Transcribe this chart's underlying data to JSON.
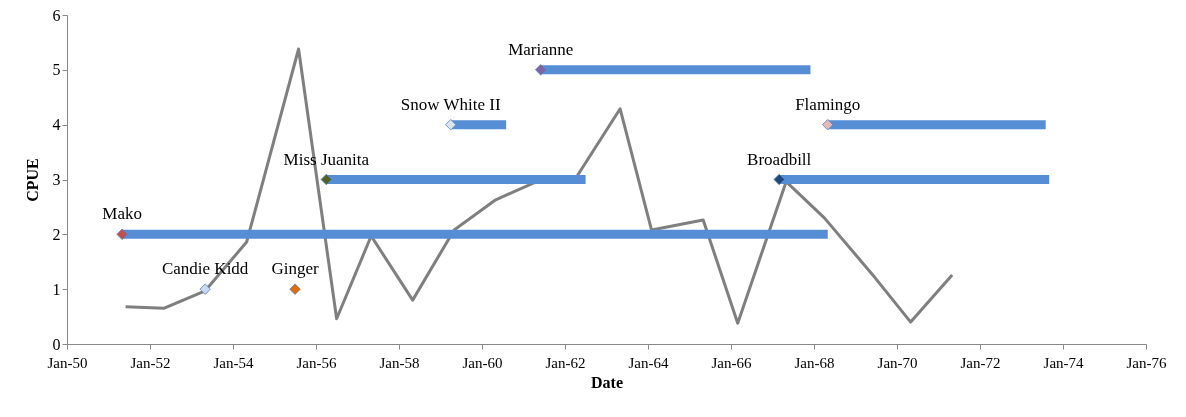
{
  "chart_data": {
    "type": "line",
    "xlabel": "Date",
    "ylabel": "CPUE",
    "xlim": [
      "1950-01",
      "1976-01"
    ],
    "ylim": [
      0,
      6
    ],
    "yticks": [
      0,
      1,
      2,
      3,
      4,
      5,
      6
    ],
    "xticks": [
      {
        "value": "1950-01",
        "label": "Jan-50"
      },
      {
        "value": "1952-01",
        "label": "Jan-52"
      },
      {
        "value": "1954-01",
        "label": "Jan-54"
      },
      {
        "value": "1956-01",
        "label": "Jan-56"
      },
      {
        "value": "1958-01",
        "label": "Jan-58"
      },
      {
        "value": "1960-01",
        "label": "Jan-60"
      },
      {
        "value": "1962-01",
        "label": "Jan-62"
      },
      {
        "value": "1964-01",
        "label": "Jan-64"
      },
      {
        "value": "1966-01",
        "label": "Jan-66"
      },
      {
        "value": "1968-01",
        "label": "Jan-68"
      },
      {
        "value": "1970-01",
        "label": "Jan-70"
      },
      {
        "value": "1972-01",
        "label": "Jan-72"
      },
      {
        "value": "1974-01",
        "label": "Jan-74"
      },
      {
        "value": "1976-01",
        "label": "Jan-76"
      }
    ],
    "grid": false,
    "line_style": "solid",
    "series": [
      {
        "color": "#7f7f7f",
        "x": [
          "1951-06",
          "1952-05",
          "1953-05",
          "1954-05",
          "1955-08",
          "1956-07",
          "1957-05",
          "1958-05",
          "1959-05",
          "1960-05",
          "1961-04",
          "1962-04",
          "1963-05",
          "1964-02",
          "1965-05",
          "1966-03",
          "1967-05",
          "1968-04",
          "1969-06",
          "1970-05",
          "1971-05"
        ],
        "values": [
          0.68,
          0.65,
          0.97,
          1.86,
          5.38,
          0.46,
          1.97,
          0.8,
          2.08,
          2.63,
          2.94,
          3.01,
          4.29,
          2.08,
          2.26,
          0.38,
          2.96,
          2.3,
          1.26,
          0.4,
          1.26
        ]
      },
      {
        "type": "line",
        "color": "#558ed5",
        "x": [
          "1951-05",
          "1968-05"
        ],
        "values": [
          2,
          2
        ]
      },
      {
        "type": "line",
        "color": "#558ed5",
        "x": [
          "1956-04",
          "1962-07"
        ],
        "values": [
          3,
          3
        ]
      },
      {
        "type": "line",
        "color": "#558ed5",
        "x": [
          "1959-04",
          "1960-08"
        ],
        "values": [
          4,
          4
        ]
      },
      {
        "type": "line",
        "color": "#558ed5",
        "x": [
          "1961-06",
          "1967-12"
        ],
        "values": [
          5,
          5
        ]
      },
      {
        "type": "line",
        "color": "#558ed5",
        "x": [
          "1968-05",
          "1973-08"
        ],
        "values": [
          4,
          4
        ]
      },
      {
        "type": "line",
        "color": "#558ed5",
        "x": [
          "1967-03",
          "1973-09"
        ],
        "values": [
          3,
          3
        ]
      },
      {
        "type": "scatter",
        "marker": "diamond",
        "name": "Mako",
        "color": "#c0504d",
        "x": [
          "1951-05"
        ],
        "values": [
          2
        ]
      },
      {
        "type": "scatter",
        "marker": "diamond",
        "name": "Candie Kidd",
        "color": "#c6d9f1",
        "x": [
          "1953-05"
        ],
        "values": [
          1
        ]
      },
      {
        "type": "scatter",
        "marker": "diamond",
        "name": "Ginger",
        "color": "#e36c09",
        "x": [
          "1955-07"
        ],
        "values": [
          1
        ]
      },
      {
        "type": "scatter",
        "marker": "diamond",
        "name": "Miss Juanita",
        "color": "#4f6228",
        "x": [
          "1956-04"
        ],
        "values": [
          3
        ]
      },
      {
        "type": "scatter",
        "marker": "diamond",
        "name": "Snow White II",
        "color": "#dbe5f1",
        "x": [
          "1959-04"
        ],
        "values": [
          4
        ]
      },
      {
        "type": "scatter",
        "marker": "diamond",
        "name": "Marianne",
        "color": "#8064a2",
        "x": [
          "1961-06"
        ],
        "values": [
          5
        ]
      },
      {
        "type": "scatter",
        "marker": "diamond",
        "name": "Broadbill",
        "color": "#1f497d",
        "x": [
          "1967-03"
        ],
        "values": [
          3
        ]
      },
      {
        "type": "scatter",
        "marker": "diamond",
        "name": "Flamingo",
        "color": "#e6b9b8",
        "x": [
          "1968-05"
        ],
        "values": [
          4
        ]
      }
    ]
  }
}
